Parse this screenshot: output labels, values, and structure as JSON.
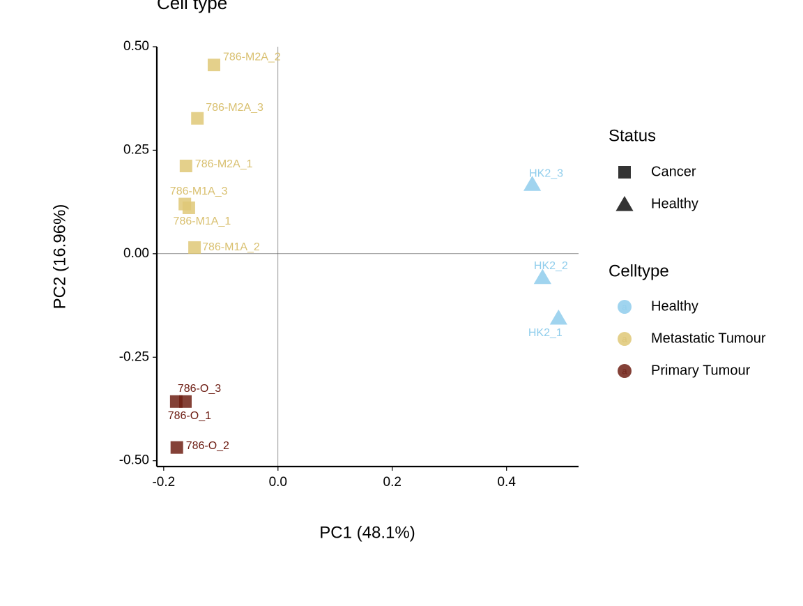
{
  "chart_data": {
    "type": "scatter",
    "title": "Cell type",
    "x_label": "PC1 (48.1%)",
    "y_label": "PC2 (16.96%)",
    "xlim": [
      -0.212,
      0.526
    ],
    "ylim": [
      -0.514,
      0.5
    ],
    "xticks": [
      {
        "value": -0.2,
        "label": "-0.2"
      },
      {
        "value": 0,
        "label": "0.0"
      },
      {
        "value": 0.2,
        "label": "0.2"
      },
      {
        "value": 0.4,
        "label": "0.4"
      }
    ],
    "yticks": [
      {
        "value": 0.5,
        "label": "0.50"
      },
      {
        "value": 0.25,
        "label": "0.25"
      },
      {
        "value": 0,
        "label": "0.00"
      },
      {
        "value": -0.25,
        "label": "-0.25"
      },
      {
        "value": -0.5,
        "label": "-0.50"
      }
    ],
    "reference_lines": true,
    "shape_legend": {
      "title": "Status",
      "entries": [
        {
          "name": "Cancer",
          "shape": "square"
        },
        {
          "name": "Healthy",
          "shape": "triangle"
        }
      ]
    },
    "color_legend": {
      "title": "Celltype",
      "key_label": "a"
    },
    "series": [
      {
        "name": "Healthy",
        "color": "#8fcdec",
        "label_color": "#8fcdec",
        "shape": "triangle",
        "labels": [
          "HK2_3",
          "HK2_2",
          "HK2_1"
        ],
        "x": [
          0.445,
          0.463,
          0.491
        ],
        "y": [
          0.168,
          -0.057,
          -0.155
        ]
      },
      {
        "name": "Metastatic Tumour",
        "color": "#dfc877",
        "label_color": "#d9c070",
        "shape": "square",
        "labels": [
          "786-M2A_2",
          "786-M2A_3",
          "786-M2A_1",
          "786-M1A_3",
          "786-M1A_1",
          "786-M1A_2"
        ],
        "x": [
          -0.112,
          -0.141,
          -0.161,
          -0.163,
          -0.156,
          -0.146
        ],
        "y": [
          0.456,
          0.327,
          0.212,
          0.12,
          0.111,
          0.015
        ]
      },
      {
        "name": "Primary Tumour",
        "color": "#6e2014",
        "label_color": "#6b1a10",
        "shape": "square",
        "labels": [
          "786-O_3",
          "786-O_1",
          "786-O_2"
        ],
        "x": [
          -0.162,
          -0.178,
          -0.177
        ],
        "y": [
          -0.357,
          -0.357,
          -0.468
        ]
      }
    ]
  }
}
